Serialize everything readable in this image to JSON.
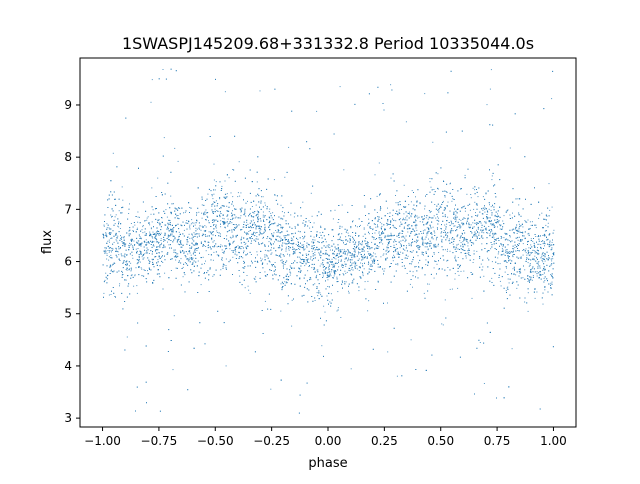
{
  "chart_data": {
    "type": "scatter",
    "title": "1SWASPJ145209.68+331332.8 Period 10335044.0s",
    "xlabel": "phase",
    "ylabel": "flux",
    "xlim": [
      -1.1,
      1.1
    ],
    "ylim": [
      2.83,
      9.9
    ],
    "xticks": [
      -1.0,
      -0.75,
      -0.5,
      -0.25,
      0.0,
      0.25,
      0.5,
      0.75,
      1.0
    ],
    "xtick_labels": [
      "−1.00",
      "−0.75",
      "−0.50",
      "−0.25",
      "0.00",
      "0.25",
      "0.50",
      "0.75",
      "1.00"
    ],
    "yticks": [
      3,
      4,
      5,
      6,
      7,
      8,
      9
    ],
    "ytick_labels": [
      "3",
      "4",
      "5",
      "6",
      "7",
      "8",
      "9"
    ],
    "grid": false,
    "marker_color": "#1f77b4",
    "series": [
      {
        "description_hint": "dense light-curve points folded over two cycles",
        "profile": [
          {
            "phase": -1.0,
            "flux": 6.2,
            "spread": 0.45
          },
          {
            "phase": -0.95,
            "flux": 6.5,
            "spread": 0.5
          },
          {
            "phase": -0.9,
            "flux": 6.1,
            "spread": 0.4
          },
          {
            "phase": -0.8,
            "flux": 6.3,
            "spread": 0.35
          },
          {
            "phase": -0.7,
            "flux": 6.6,
            "spread": 0.4
          },
          {
            "phase": -0.65,
            "flux": 6.4,
            "spread": 0.4
          },
          {
            "phase": -0.6,
            "flux": 6.4,
            "spread": 0.35
          },
          {
            "phase": -0.5,
            "flux": 6.7,
            "spread": 0.45
          },
          {
            "phase": -0.4,
            "flux": 6.5,
            "spread": 0.45
          },
          {
            "phase": -0.3,
            "flux": 6.6,
            "spread": 0.45
          },
          {
            "phase": -0.2,
            "flux": 6.3,
            "spread": 0.4
          },
          {
            "phase": -0.1,
            "flux": 6.1,
            "spread": 0.4
          },
          {
            "phase": 0.0,
            "flux": 6.0,
            "spread": 0.4
          },
          {
            "phase": 0.1,
            "flux": 6.1,
            "spread": 0.35
          },
          {
            "phase": 0.2,
            "flux": 6.3,
            "spread": 0.35
          },
          {
            "phase": 0.3,
            "flux": 6.6,
            "spread": 0.4
          },
          {
            "phase": 0.4,
            "flux": 6.4,
            "spread": 0.4
          },
          {
            "phase": 0.5,
            "flux": 6.8,
            "spread": 0.45
          },
          {
            "phase": 0.6,
            "flux": 6.5,
            "spread": 0.45
          },
          {
            "phase": 0.7,
            "flux": 6.7,
            "spread": 0.45
          },
          {
            "phase": 0.8,
            "flux": 6.3,
            "spread": 0.4
          },
          {
            "phase": 0.9,
            "flux": 6.1,
            "spread": 0.4
          },
          {
            "phase": 1.0,
            "flux": 6.1,
            "spread": 0.4
          }
        ]
      }
    ]
  }
}
